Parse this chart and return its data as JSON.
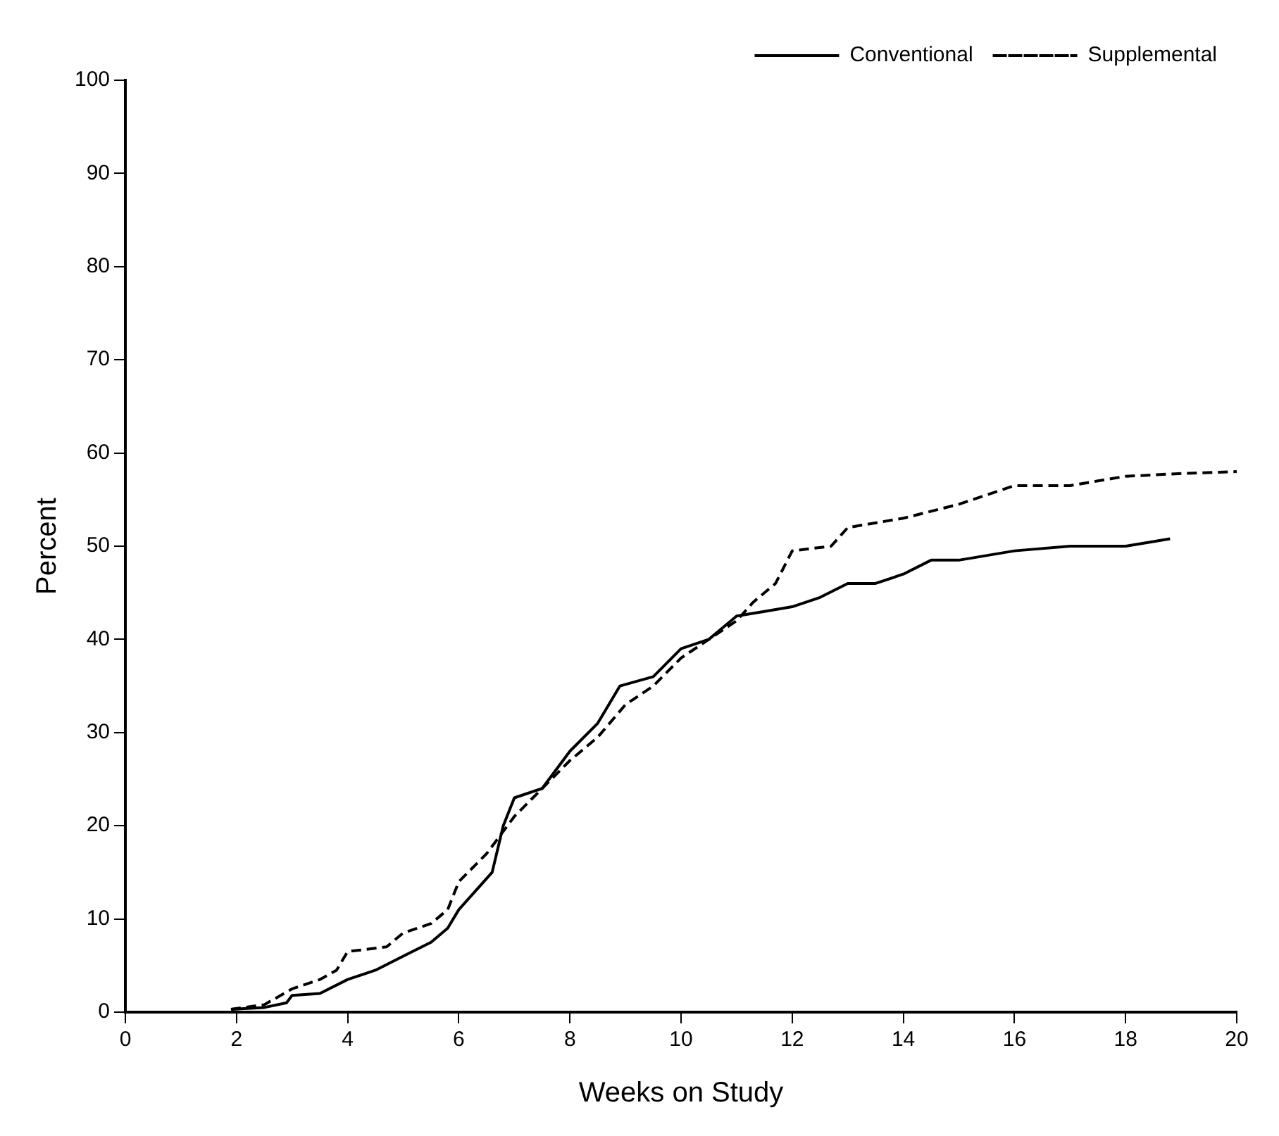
{
  "chart_data": {
    "type": "line",
    "xlabel": "Weeks on Study",
    "ylabel": "Percent",
    "xlim": [
      0,
      20
    ],
    "xticks": [
      0,
      2,
      4,
      6,
      8,
      10,
      12,
      14,
      16,
      18,
      20
    ],
    "ylim": [
      0,
      100
    ],
    "yticks": [
      0,
      10,
      20,
      30,
      40,
      50,
      60,
      70,
      80,
      90,
      100
    ],
    "grid": false,
    "legend": "top right",
    "marker": "none",
    "series": [
      {
        "name": "Conventional",
        "color": "#000000",
        "line_style": "solid",
        "x": [
          1.9,
          2.5,
          2.9,
          3,
          3.5,
          4,
          4.5,
          5,
          5.5,
          5.8,
          6,
          6.3,
          6.6,
          6.8,
          7,
          7.5,
          8,
          8.5,
          8.9,
          9.5,
          10,
          10.5,
          11,
          11.5,
          12,
          12.5,
          13,
          13.5,
          14,
          14.5,
          15,
          16,
          17,
          18,
          18.8
        ],
        "values": [
          0.3,
          0.5,
          1,
          1.8,
          2,
          3.5,
          4.5,
          6,
          7.5,
          9,
          11,
          13,
          15,
          20,
          23,
          24,
          28,
          31,
          35,
          36,
          39,
          40,
          42.5,
          43,
          43.5,
          44.5,
          46,
          46,
          47,
          48.5,
          48.5,
          49.5,
          50,
          50,
          50.8
        ]
      },
      {
        "name": "Supplemental",
        "color": "#000000",
        "line_style": "dashed",
        "x": [
          1.9,
          2.5,
          3,
          3.5,
          3.8,
          4,
          4.7,
          5,
          5.5,
          5.8,
          6,
          6.5,
          7,
          7.5,
          8,
          8.5,
          9,
          9.5,
          10,
          10.5,
          11,
          11.3,
          11.7,
          12,
          12.7,
          13,
          14,
          15,
          15.5,
          16,
          17,
          17.5,
          18,
          19,
          20
        ],
        "values": [
          0.3,
          0.8,
          2.5,
          3.5,
          4.5,
          6.5,
          7,
          8.5,
          9.5,
          11,
          14,
          17,
          21,
          24,
          27,
          29.5,
          33,
          35,
          38,
          40,
          42,
          44,
          46,
          49.5,
          50,
          52,
          53,
          54.5,
          55.5,
          56.5,
          56.5,
          57,
          57.5,
          57.8,
          58
        ]
      }
    ]
  }
}
